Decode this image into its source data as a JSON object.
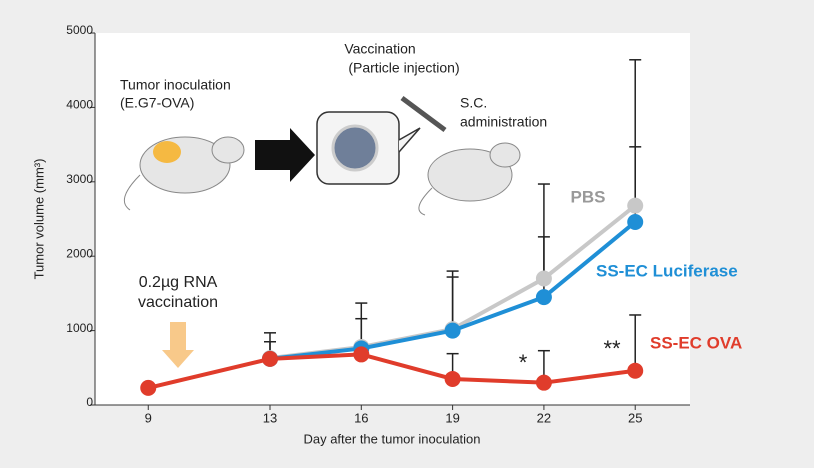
{
  "chart_data": {
    "type": "line",
    "xlabel": "Day after the tumor inoculation",
    "ylabel": "Tumor volume (mm³)",
    "x": [
      9,
      13,
      16,
      19,
      22,
      25
    ],
    "xlim": [
      7.25,
      26.8
    ],
    "xticks": [
      9,
      13,
      16,
      19,
      22,
      25
    ],
    "ylim": [
      0,
      5000
    ],
    "yticks": [
      0,
      1000,
      2000,
      3000,
      4000,
      5000
    ],
    "series": [
      {
        "name": "PBS",
        "color": "#c8c8c8",
        "values": [
          null,
          630,
          780,
          1020,
          1700,
          2680
        ],
        "errors": [
          null,
          340,
          590,
          780,
          1270,
          1960
        ]
      },
      {
        "name": "SS-EC Luciferase",
        "color": "#1f8fd6",
        "values": [
          null,
          620,
          760,
          1000,
          1450,
          2460
        ],
        "errors": [
          null,
          230,
          400,
          720,
          810,
          1010
        ]
      },
      {
        "name": "SS-EC OVA",
        "color": "#e03c2b",
        "values": [
          230,
          620,
          680,
          350,
          300,
          460
        ],
        "errors": [
          null,
          null,
          null,
          340,
          430,
          750
        ]
      }
    ],
    "annotations": [
      "Tumor inoculation",
      "(E.G7-OVA)",
      "Vaccination",
      "(Particle injection)",
      "S.C.",
      "administration",
      "0.2µg RNA",
      "vaccination",
      "*",
      "**"
    ]
  }
}
